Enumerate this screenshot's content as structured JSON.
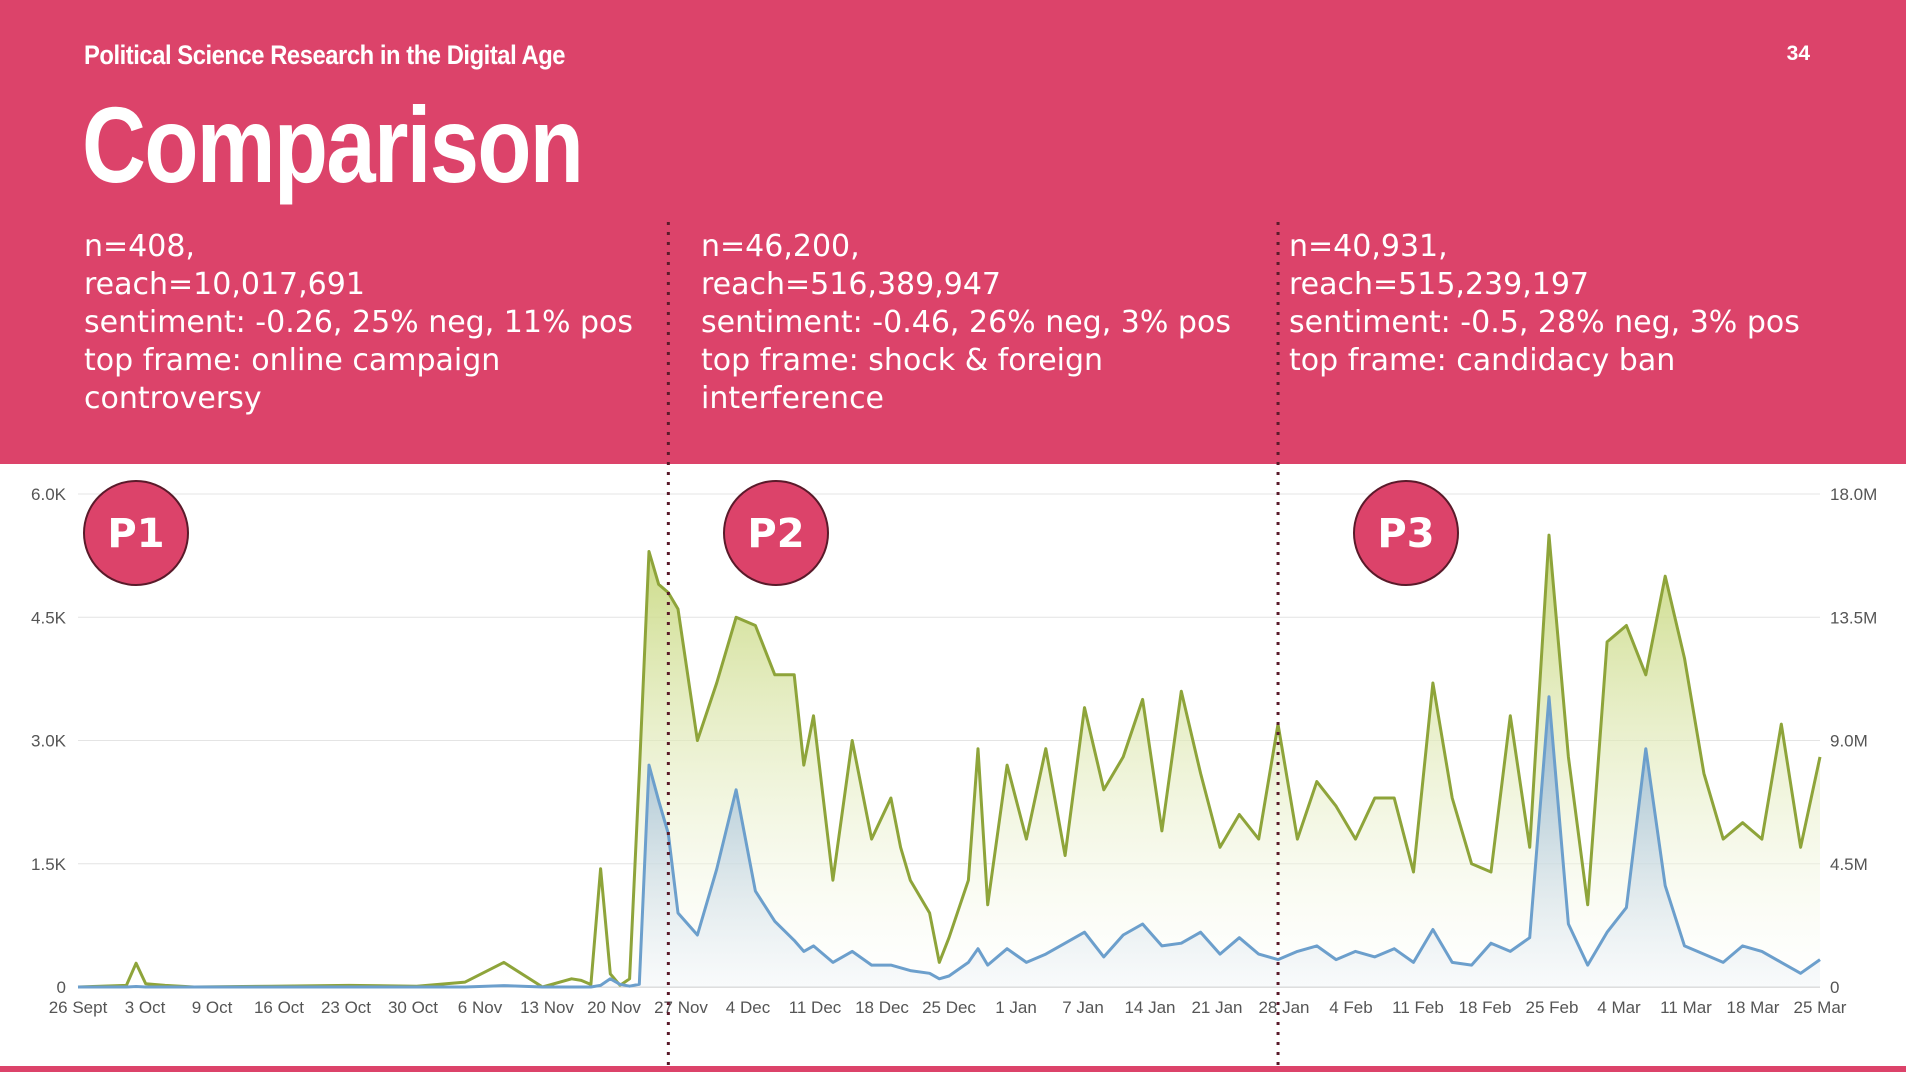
{
  "slide": {
    "deck_title": "Political Science Research in the Digital Age",
    "page_number": "34",
    "heading": "Comparison"
  },
  "periods": [
    {
      "label": "P1",
      "lines": [
        "n=408,",
        "reach=10,017,691",
        "sentiment: -0.26, 25% neg, 11% pos",
        "top frame: online campaign",
        "controversy"
      ]
    },
    {
      "label": "P2",
      "lines": [
        "n=46,200,",
        "reach=516,389,947",
        "sentiment: -0.46, 26% neg, 3% pos",
        "top frame: shock & foreign",
        "interference"
      ]
    },
    {
      "label": "P3",
      "lines": [
        "n=40,931,",
        "reach=515,239,197",
        "sentiment: -0.5, 28% neg, 3% pos",
        "top frame: candidacy ban"
      ]
    }
  ],
  "colors": {
    "brand": "#dc436a",
    "mentions_line": "#8ea43a",
    "reach_line": "#6c9fcc",
    "divider": "#5a1a2a"
  },
  "chart_data": {
    "type": "area",
    "x_ticks": [
      "26 Sept",
      "3 Oct",
      "9 Oct",
      "16 Oct",
      "23 Oct",
      "30 Oct",
      "6 Nov",
      "13 Nov",
      "20 Nov",
      "27 Nov",
      "4 Dec",
      "11 Dec",
      "18 Dec",
      "25 Dec",
      "1 Jan",
      "7 Jan",
      "14 Jan",
      "21 Jan",
      "28 Jan",
      "4 Feb",
      "11 Feb",
      "18 Feb",
      "25 Feb",
      "4 Mar",
      "11 Mar",
      "18 Mar",
      "25 Mar"
    ],
    "y_left_ticks": [
      "0",
      "1.5K",
      "3.0K",
      "4.5K",
      "6.0K"
    ],
    "y_left_range": [
      0,
      6000
    ],
    "y_right_ticks": [
      "0",
      "4.5M",
      "9.0M",
      "13.5M",
      "18.0M"
    ],
    "y_right_range": [
      0,
      18000000
    ],
    "grid": true,
    "period_boundaries_day_index": [
      61,
      124
    ],
    "series": [
      {
        "axis": "left",
        "x_day_index": [
          0,
          5,
          6,
          7,
          9,
          12,
          20,
          28,
          35,
          40,
          44,
          48,
          51,
          52,
          53,
          54,
          55,
          56,
          57,
          58,
          59,
          60,
          61,
          62,
          64,
          66,
          68,
          70,
          72,
          74,
          75,
          76,
          78,
          80,
          82,
          84,
          85,
          86,
          88,
          89,
          90,
          92,
          93,
          94,
          96,
          98,
          100,
          102,
          104,
          106,
          108,
          110,
          112,
          114,
          116,
          118,
          120,
          122,
          124,
          126,
          128,
          130,
          132,
          134,
          136,
          138,
          140,
          142,
          144,
          146,
          148,
          150,
          152,
          154,
          156,
          158,
          160,
          162,
          164,
          166,
          168,
          170,
          172,
          174,
          176,
          178,
          180
        ],
        "values": [
          0,
          20,
          290,
          40,
          20,
          0,
          10,
          20,
          10,
          60,
          300,
          0,
          100,
          80,
          30,
          1440,
          160,
          20,
          100,
          2600,
          5300,
          4900,
          4800,
          4600,
          3000,
          3700,
          4500,
          4400,
          3800,
          3800,
          2700,
          3300,
          1300,
          3000,
          1800,
          2300,
          1700,
          1300,
          900,
          300,
          600,
          1300,
          2900,
          1000,
          2700,
          1800,
          2900,
          1600,
          3400,
          2400,
          2800,
          3500,
          1900,
          3600,
          2600,
          1700,
          2100,
          1800,
          3200,
          1800,
          2500,
          2200,
          1800,
          2300,
          2300,
          1400,
          3700,
          2300,
          1500,
          1400,
          3300,
          1700,
          5500,
          2800,
          1000,
          4200,
          4400,
          3800,
          5000,
          4000,
          2600,
          1800,
          2000,
          1800,
          3200,
          1700,
          2800
        ]
      },
      {
        "axis": "right",
        "x_day_index": [
          0,
          5,
          6,
          7,
          9,
          12,
          20,
          28,
          35,
          40,
          44,
          48,
          51,
          52,
          53,
          54,
          55,
          56,
          57,
          58,
          59,
          60,
          61,
          62,
          64,
          66,
          68,
          70,
          72,
          74,
          75,
          76,
          78,
          80,
          82,
          84,
          85,
          86,
          88,
          89,
          90,
          92,
          93,
          94,
          96,
          98,
          100,
          102,
          104,
          106,
          108,
          110,
          112,
          114,
          116,
          118,
          120,
          122,
          124,
          126,
          128,
          130,
          132,
          134,
          136,
          138,
          140,
          142,
          144,
          146,
          148,
          150,
          152,
          154,
          156,
          158,
          160,
          162,
          164,
          166,
          168,
          170,
          172,
          174,
          176,
          178,
          180
        ],
        "values": [
          0,
          0,
          20000,
          0,
          0,
          0,
          0,
          0,
          0,
          0,
          50000,
          0,
          0,
          0,
          0,
          60000,
          300000,
          100000,
          30000,
          100000,
          8100000,
          6800000,
          5600000,
          2700000,
          1900000,
          4300000,
          7200000,
          3500000,
          2400000,
          1700000,
          1300000,
          1500000,
          900000,
          1300000,
          800000,
          800000,
          700000,
          600000,
          500000,
          300000,
          400000,
          900000,
          1400000,
          800000,
          1400000,
          900000,
          1200000,
          1600000,
          2000000,
          1100000,
          1900000,
          2300000,
          1500000,
          1600000,
          2000000,
          1200000,
          1800000,
          1200000,
          1000000,
          1300000,
          1500000,
          1000000,
          1300000,
          1100000,
          1400000,
          900000,
          2100000,
          900000,
          800000,
          1600000,
          1300000,
          1800000,
          10600000,
          2300000,
          800000,
          2000000,
          2900000,
          8700000,
          3700000,
          1500000,
          1200000,
          900000,
          1500000,
          1300000,
          900000,
          500000,
          1000000
        ]
      }
    ]
  }
}
